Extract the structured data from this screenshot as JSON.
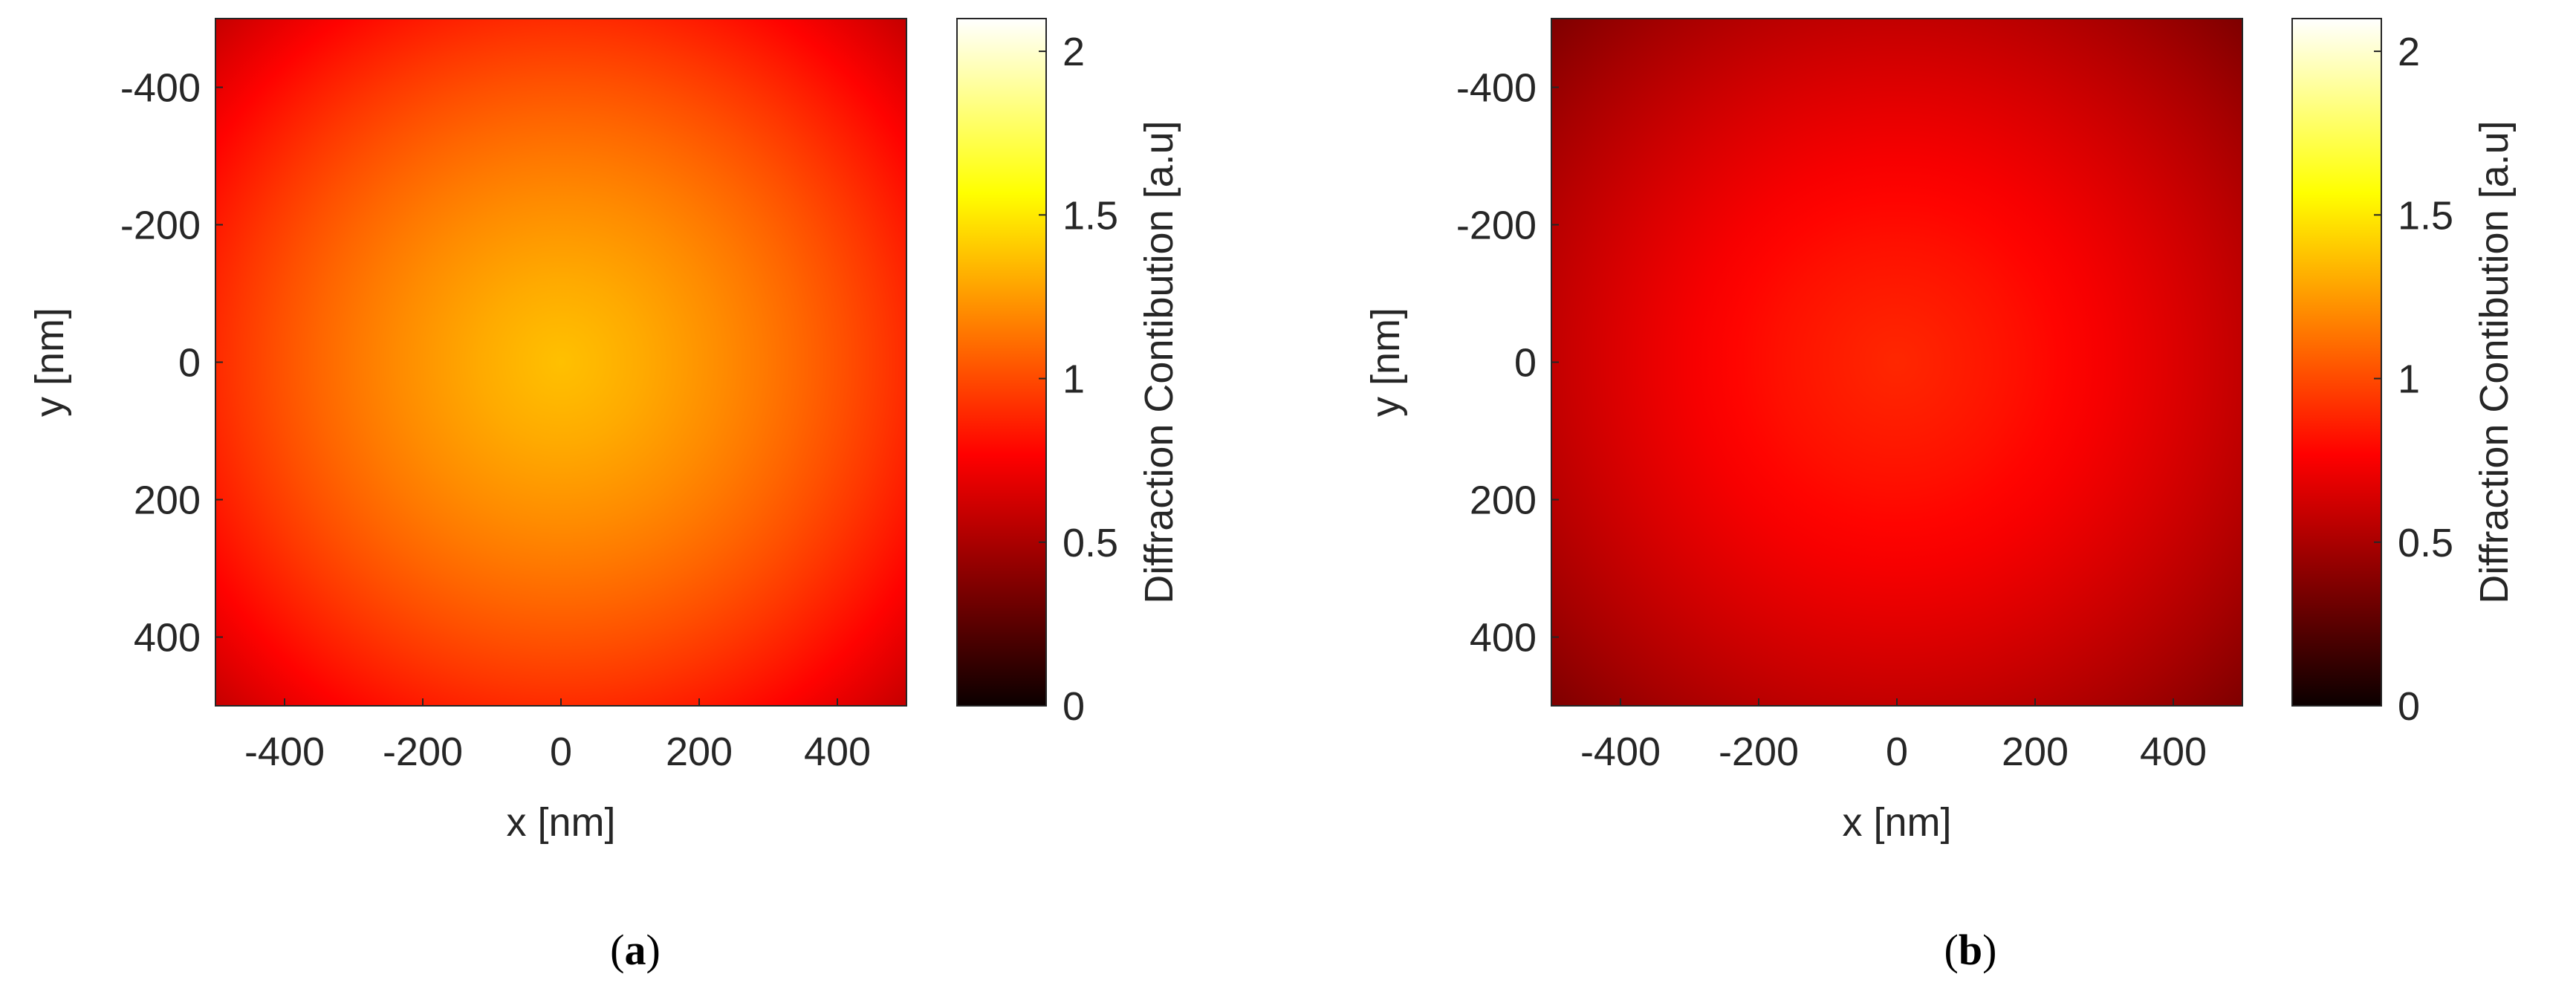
{
  "figure": {
    "panels": [
      {
        "caption_prefix": "(",
        "caption_letter": "a",
        "caption_suffix": ")"
      },
      {
        "caption_prefix": "(",
        "caption_letter": "b",
        "caption_suffix": ")"
      }
    ]
  },
  "chart_data": [
    {
      "type": "heatmap",
      "title": "",
      "xlabel": "x [nm]",
      "ylabel": "y [nm]",
      "xlim": [
        -500,
        500
      ],
      "ylim": [
        -500,
        500
      ],
      "y_reversed": true,
      "x_ticks": [
        -400,
        -200,
        0,
        200,
        400
      ],
      "y_ticks": [
        -400,
        -200,
        0,
        200,
        400
      ],
      "grid": false,
      "colormap": "hot",
      "colorbar": {
        "label": "Diffraction Contibution [a.u]",
        "range": [
          0,
          2.1
        ],
        "ticks": [
          0,
          0.5,
          1,
          1.5,
          2
        ]
      },
      "field": {
        "shape": "radial",
        "center": [
          0,
          0
        ],
        "center_value": 1.37,
        "corner_value": 0.58
      }
    },
    {
      "type": "heatmap",
      "title": "",
      "xlabel": "x [nm]",
      "ylabel": "y [nm]",
      "xlim": [
        -500,
        500
      ],
      "ylim": [
        -500,
        500
      ],
      "y_reversed": true,
      "x_ticks": [
        -400,
        -200,
        0,
        200,
        400
      ],
      "y_ticks": [
        -400,
        -200,
        0,
        200,
        400
      ],
      "grid": false,
      "colormap": "hot",
      "colorbar": {
        "label": "Diffraction Contibution [a.u]",
        "range": [
          0,
          2.1
        ],
        "ticks": [
          0,
          0.5,
          1,
          1.5,
          2
        ]
      },
      "field": {
        "shape": "radial",
        "center": [
          0,
          0
        ],
        "center_value": 0.89,
        "corner_value": 0.36
      }
    }
  ]
}
